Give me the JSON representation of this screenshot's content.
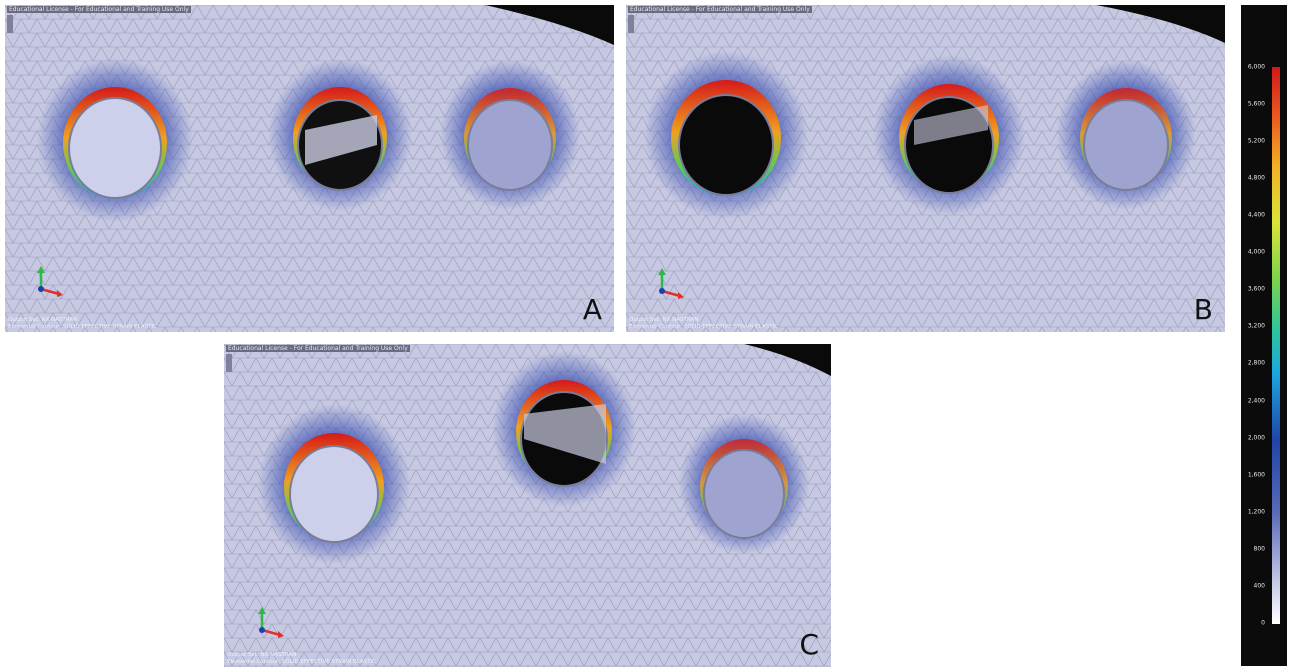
{
  "panels": [
    {
      "id": "A",
      "license": "Educational License - For Educational and Training Use Only",
      "footer_line1": "Output Set: NX NASTRAN",
      "footer_line2": "Elemental Contour: SOLID EFFECTIVE STRAIN ELASTIC"
    },
    {
      "id": "B",
      "license": "Educational License - For Educational and Training Use Only",
      "footer_line1": "Output Set: NX NASTRAN",
      "footer_line2": "Elemental Contour: SOLID EFFECTIVE STRAIN ELASTIC"
    },
    {
      "id": "C",
      "license": "Educational License - For Educational and Training Use Only",
      "footer_line1": "Output Set: NX NASTRAN",
      "footer_line2": "Elemental Contour: SOLID EFFECTIVE STRAIN ELASTIC"
    }
  ],
  "legend": {
    "ticks": [
      "6,000",
      "5,600",
      "5,200",
      "4,800",
      "4,400",
      "4,000",
      "3,600",
      "3,200",
      "2,800",
      "2,400",
      "2,000",
      "1,600",
      "1,200",
      "800",
      "400",
      "0"
    ],
    "colors": {
      "max": "#d01818",
      "high": "#ea5a1e",
      "mid": "#7dd34b",
      "low": "#1f45a8",
      "min": "#ffffff"
    }
  }
}
